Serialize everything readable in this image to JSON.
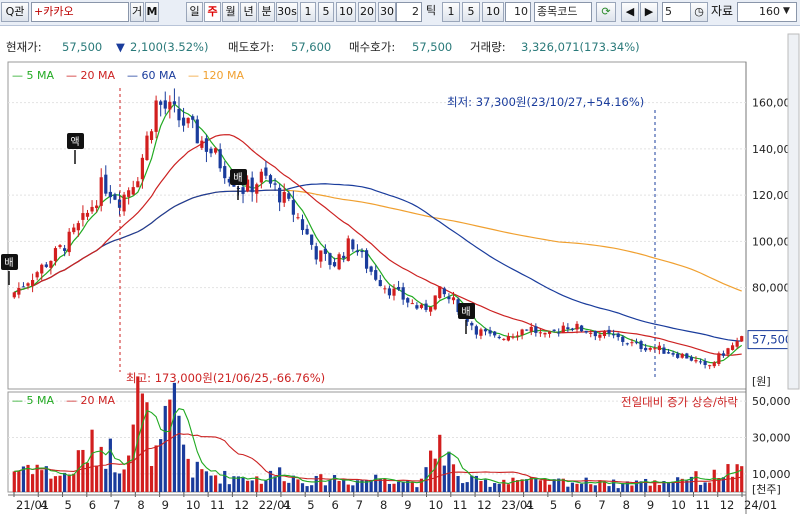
{
  "toolbar": {
    "search_icon": "search-icon",
    "search_label": "Q관",
    "stock_name": "+카카오",
    "btn_ge": "거",
    "btn_m": "M",
    "periods": [
      "일",
      "주",
      "월",
      "년",
      "분",
      "30s",
      "1",
      "5",
      "10",
      "20",
      "30"
    ],
    "selected_period": "주",
    "count": "2",
    "tick_label": "틱",
    "tick_opts": [
      "1",
      "5",
      "10"
    ],
    "stock_code_label": "종목코드",
    "page_num": "5",
    "data_label": "자료",
    "data_count": "160"
  },
  "info": {
    "price_label": "현재가:",
    "price": "57,500",
    "change_arrow": "▼",
    "change": "2,100(3.52%)",
    "ask_label": "매도호가:",
    "ask": "57,600",
    "bid_label": "매수호가:",
    "bid": "57,500",
    "volume_label": "거래량:",
    "volume": "3,326,071(173.34%)"
  },
  "chart_data": {
    "type": "candlestick",
    "price_legend": [
      {
        "name": "5 MA",
        "color": "#22aa22"
      },
      {
        "name": "20 MA",
        "color": "#cc2222"
      },
      {
        "name": "60 MA",
        "color": "#1a3c9c"
      },
      {
        "name": "120 MA",
        "color": "#f0a030"
      }
    ],
    "volume_legend": [
      {
        "name": "5 MA",
        "color": "#22aa22"
      },
      {
        "name": "20 MA",
        "color": "#cc2222"
      }
    ],
    "price_axis": {
      "min": 37000,
      "max": 175000,
      "ticks": [
        "160,000",
        "140,000",
        "120,000",
        "100,000",
        "80,000"
      ],
      "tick_values": [
        160000,
        140000,
        120000,
        100000,
        80000
      ],
      "unit": "[원]"
    },
    "volume_axis": {
      "min": 0,
      "max": 55000,
      "ticks": [
        "50,000",
        "30,000",
        "10,000"
      ],
      "tick_values": [
        50000,
        30000,
        10000
      ],
      "unit": "[천주]"
    },
    "current_price_label": "57,500",
    "current_price": 57500,
    "x_labels": [
      "21/01",
      "4",
      "5",
      "6",
      "7",
      "8",
      "9",
      "10",
      "11",
      "12",
      "22/01",
      "4",
      "5",
      "6",
      "7",
      "8",
      "9",
      "10",
      "11",
      "12",
      "23/01",
      "4",
      "5",
      "6",
      "7",
      "8",
      "9",
      "10",
      "11",
      "12",
      "24/01"
    ],
    "annotations": {
      "high": "최고: 173,000원(21/06/25,-66.76%)",
      "low": "최저: 37,300원(23/10/27,+54.16%)",
      "volume_note": "전일대비 증가 상승/하락",
      "markers": [
        "배",
        "액",
        "배",
        "배"
      ]
    },
    "close_anchors": [
      78000,
      85000,
      92000,
      100000,
      110000,
      125000,
      118000,
      130000,
      160000,
      155000,
      148000,
      140000,
      130000,
      122000,
      128000,
      120000,
      110000,
      95000,
      90000,
      100000,
      88000,
      80000,
      75000,
      70000,
      78000,
      72000,
      62000,
      58000,
      60000,
      63000,
      58000,
      64000,
      62000,
      60000,
      58000,
      55000,
      54000,
      52000,
      50000,
      45000,
      52000,
      57500
    ],
    "volume_anchors": [
      12000,
      16000,
      10000,
      9000,
      22000,
      26000,
      15000,
      52000,
      18000,
      46000,
      12000,
      10000,
      8000,
      9000,
      7000,
      11000,
      7000,
      6000,
      8000,
      6000,
      7000,
      9000,
      6000,
      5000,
      30000,
      7000,
      6000,
      5000,
      8000,
      6000,
      5000,
      6000,
      5000,
      7000,
      4000,
      6000,
      5000,
      7000,
      9000,
      6000,
      12000,
      10000
    ]
  }
}
